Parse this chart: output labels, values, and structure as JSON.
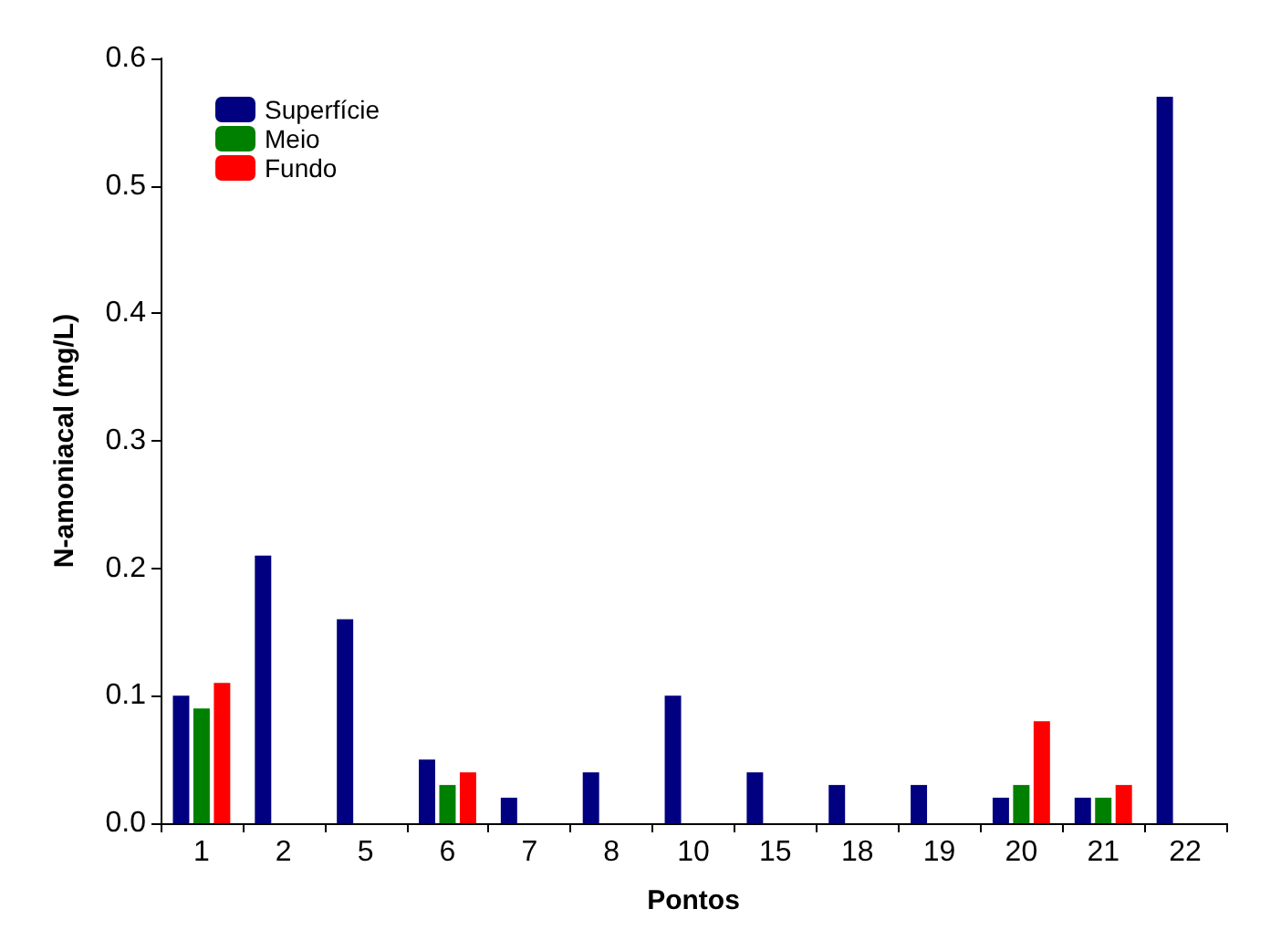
{
  "chart_data": {
    "type": "bar",
    "xlabel": "Pontos",
    "ylabel": "N-amoniacal (mg/L)",
    "categories": [
      "1",
      "2",
      "5",
      "6",
      "7",
      "8",
      "10",
      "15",
      "18",
      "19",
      "20",
      "21",
      "22"
    ],
    "series": [
      {
        "name": "Superfície",
        "color": "#000080",
        "values": [
          0.1,
          0.21,
          0.16,
          0.05,
          0.02,
          0.04,
          0.1,
          0.04,
          0.03,
          0.03,
          0.02,
          0.02,
          0.57
        ]
      },
      {
        "name": "Meio",
        "color": "#008000",
        "values": [
          0.09,
          null,
          null,
          0.03,
          null,
          null,
          null,
          null,
          null,
          null,
          0.03,
          0.02,
          null
        ]
      },
      {
        "name": "Fundo",
        "color": "#ff0000",
        "values": [
          0.11,
          null,
          null,
          0.04,
          null,
          null,
          null,
          null,
          null,
          null,
          0.08,
          0.03,
          null
        ]
      }
    ],
    "ylim": [
      0,
      0.6
    ],
    "yticks": [
      {
        "value": 0,
        "label": "0.0"
      },
      {
        "value": 0.1,
        "label": "0.1"
      },
      {
        "value": 0.2,
        "label": "0.2"
      },
      {
        "value": 0.3,
        "label": "0.3"
      },
      {
        "value": 0.4,
        "label": "0.4"
      },
      {
        "value": 0.5,
        "label": "0.5"
      },
      {
        "value": 0.6,
        "label": "0.6"
      }
    ],
    "grid": false,
    "legend": "top left"
  }
}
